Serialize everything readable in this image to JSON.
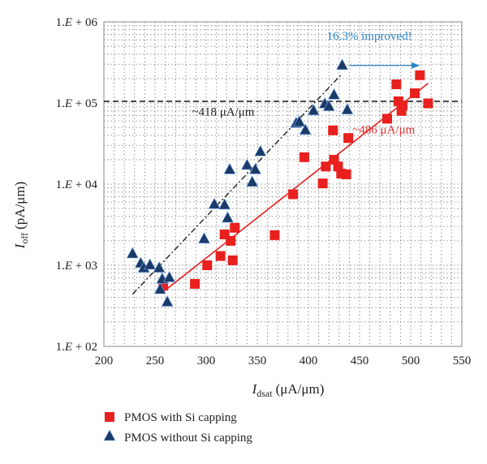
{
  "chart_data": {
    "type": "scatter",
    "x_axis": {
      "label_main": "I",
      "label_sub": "dsat",
      "label_unit": "(μA/μm)",
      "range": [
        200,
        550
      ],
      "ticks": [
        200,
        250,
        300,
        350,
        400,
        450,
        500,
        550
      ],
      "tick_labels": [
        "200",
        "250",
        "300",
        "350",
        "400",
        "450",
        "500",
        "550"
      ]
    },
    "y_axis": {
      "label_main": "I",
      "label_sub": "off",
      "label_unit": "(pA/μm)",
      "scale": "log",
      "range": [
        100,
        1000000
      ],
      "ticks": [
        100,
        1000,
        10000,
        100000,
        1000000
      ],
      "tick_labels": [
        "1.E + 02",
        "1.E + 03",
        "1.E + 04",
        "1.E + 05",
        "1.E + 06"
      ]
    },
    "grid": true,
    "grid_style": "dotted",
    "legend_position": "bottom",
    "series": [
      {
        "name": "PMOS with Si capping",
        "color": "#e8201e",
        "marker": "square",
        "points": [
          [
            258,
            560
          ],
          [
            289,
            590
          ],
          [
            301,
            1000
          ],
          [
            314,
            1300
          ],
          [
            318,
            2400
          ],
          [
            324,
            2000
          ],
          [
            326,
            1150
          ],
          [
            328,
            2900
          ],
          [
            367,
            2350
          ],
          [
            385,
            7500
          ],
          [
            396,
            21500
          ],
          [
            414,
            10200
          ],
          [
            417,
            16500
          ],
          [
            424,
            46000
          ],
          [
            425,
            20000
          ],
          [
            429,
            16500
          ],
          [
            432,
            13500
          ],
          [
            437,
            13200
          ],
          [
            439,
            37000
          ],
          [
            477,
            64000
          ],
          [
            486,
            170000
          ],
          [
            488,
            105000
          ],
          [
            491,
            80000
          ],
          [
            492,
            93000
          ],
          [
            504,
            132000
          ],
          [
            509,
            220000
          ],
          [
            517,
            99000
          ]
        ]
      },
      {
        "name": "PMOS without Si capping",
        "color": "#1c3a66",
        "marker": "triangle",
        "points": [
          [
            228,
            1380
          ],
          [
            236,
            1050
          ],
          [
            239,
            920
          ],
          [
            245,
            1000
          ],
          [
            254,
            920
          ],
          [
            255,
            500
          ],
          [
            257,
            670
          ],
          [
            262,
            350
          ],
          [
            264,
            700
          ],
          [
            298,
            2100
          ],
          [
            308,
            5600
          ],
          [
            318,
            5500
          ],
          [
            321,
            3800
          ],
          [
            323,
            15000
          ],
          [
            340,
            17000
          ],
          [
            345,
            10500
          ],
          [
            348,
            15000
          ],
          [
            353,
            25000
          ],
          [
            388,
            56000
          ],
          [
            391,
            58000
          ],
          [
            397,
            46000
          ],
          [
            405,
            80000
          ],
          [
            416,
            97000
          ],
          [
            420,
            90000
          ],
          [
            425,
            125000
          ],
          [
            433,
            290000
          ],
          [
            438,
            82000
          ]
        ]
      }
    ],
    "fit_lines": [
      {
        "series": "PMOS with Si capping",
        "color": "#e8201e",
        "style": "solid",
        "from": [
          258,
          470
        ],
        "to": [
          517,
          175000
        ]
      },
      {
        "series": "PMOS without Si capping",
        "color": "#111111",
        "style": "dash-dot",
        "from": [
          228,
          440
        ],
        "to": [
          433,
          230000
        ]
      }
    ],
    "reference_lines": [
      {
        "type": "horizontal",
        "y": 105000,
        "x_from": 200,
        "x_to": 550,
        "style": "dashed",
        "color": "#111111"
      }
    ],
    "annotations": [
      {
        "text": "~418 μA/μm",
        "color": "#222222",
        "x": 286,
        "y": 70000
      },
      {
        "text": "~486 μA/μm",
        "color": "#e03030",
        "x": 443,
        "y": 42000
      },
      {
        "text": "16.3% improved!",
        "color": "#2b84c6",
        "x": 418,
        "y": 600000
      }
    ],
    "improvement_arrow": {
      "color": "#2b84c6",
      "from": [
        433,
        290000
      ],
      "to": [
        508,
        290000
      ]
    }
  }
}
